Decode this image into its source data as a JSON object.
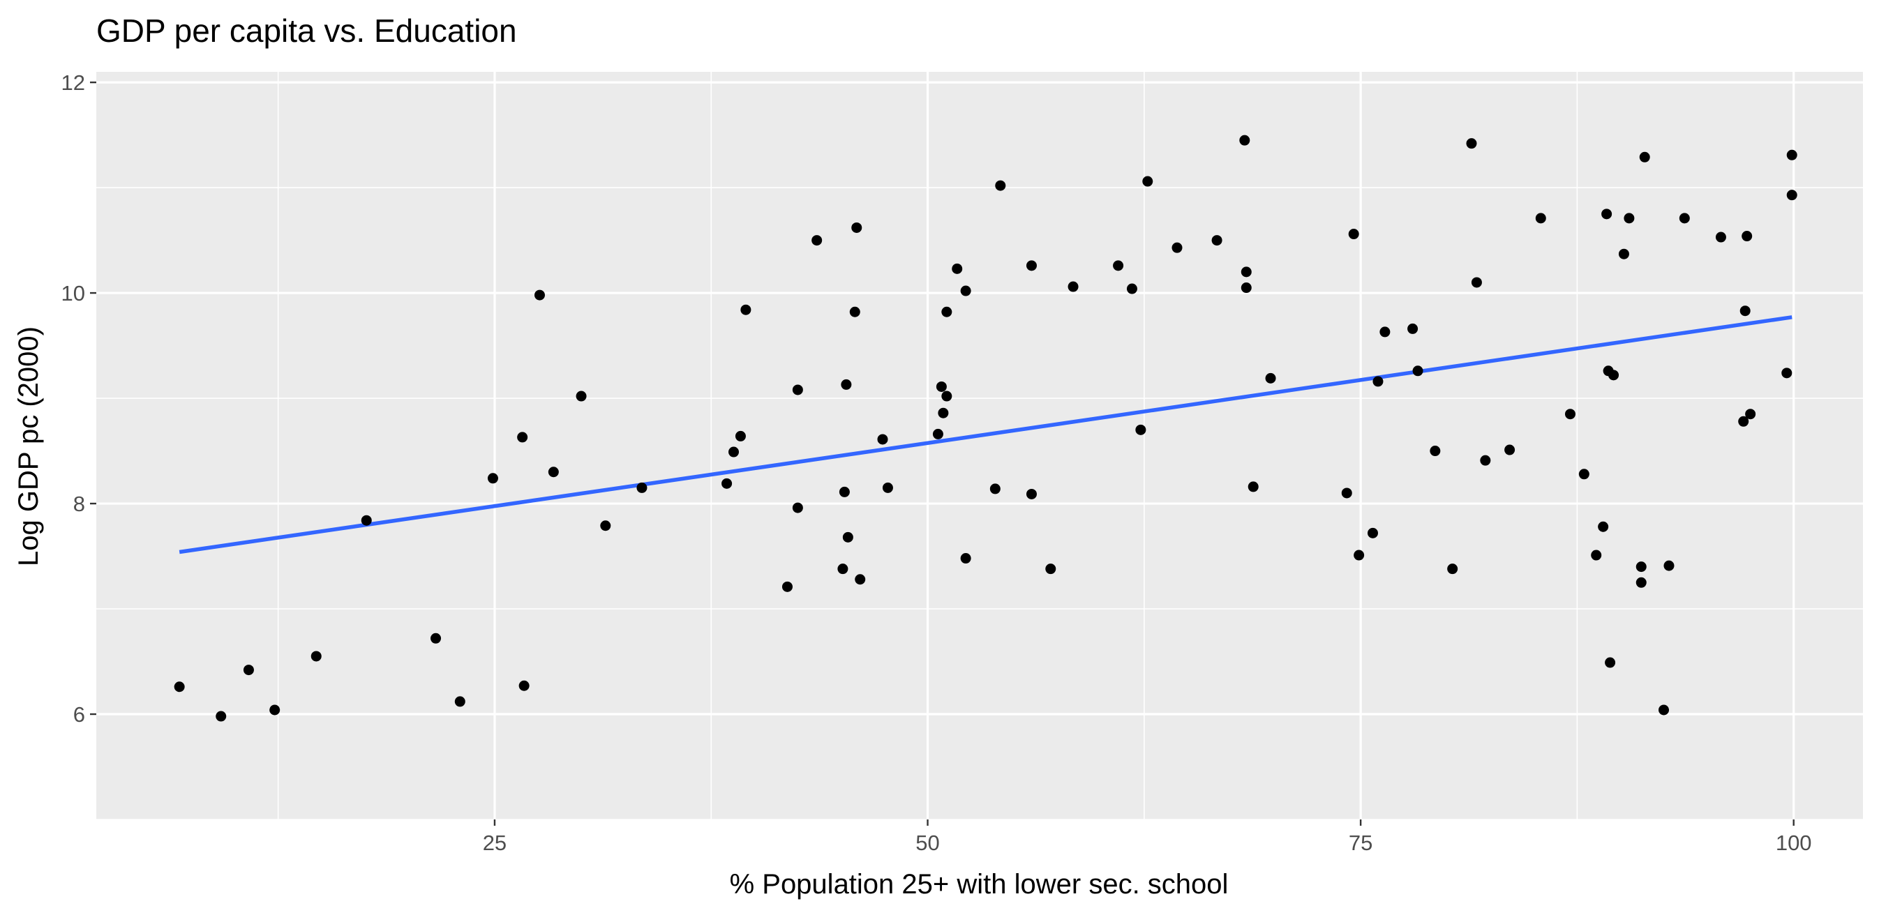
{
  "colors": {
    "panel_background": "#ebebeb",
    "grid_major": "#ffffff",
    "point": "#000000",
    "fit_line": "#3366ff",
    "tick": "#333333"
  },
  "chart_data": {
    "type": "scatter",
    "title": "GDP per capita vs. Education",
    "xlabel": "% Population 25+ with lower sec. school",
    "ylabel": "Log GDP pc (2000)",
    "xlim": [
      2,
      104
    ],
    "ylim": [
      5,
      12.1
    ],
    "xticks": [
      25,
      50,
      75,
      100
    ],
    "xtick_labels": [
      "25",
      "50",
      "75",
      "100"
    ],
    "yticks": [
      6,
      8,
      10,
      12
    ],
    "ytick_labels": [
      "6",
      "8",
      "10",
      "12"
    ],
    "grid": true,
    "legend": "none",
    "points": [
      {
        "x": 6.8,
        "y": 6.26
      },
      {
        "x": 9.2,
        "y": 5.98
      },
      {
        "x": 10.8,
        "y": 6.42
      },
      {
        "x": 12.3,
        "y": 6.04
      },
      {
        "x": 14.7,
        "y": 6.55
      },
      {
        "x": 17.6,
        "y": 7.84
      },
      {
        "x": 21.6,
        "y": 6.72
      },
      {
        "x": 23.0,
        "y": 6.12
      },
      {
        "x": 24.9,
        "y": 8.24
      },
      {
        "x": 26.6,
        "y": 8.63
      },
      {
        "x": 26.7,
        "y": 6.27
      },
      {
        "x": 27.6,
        "y": 9.98
      },
      {
        "x": 28.4,
        "y": 8.3
      },
      {
        "x": 30.0,
        "y": 9.02
      },
      {
        "x": 31.4,
        "y": 7.79
      },
      {
        "x": 33.5,
        "y": 8.15
      },
      {
        "x": 38.4,
        "y": 8.19
      },
      {
        "x": 38.8,
        "y": 8.49
      },
      {
        "x": 39.2,
        "y": 8.64
      },
      {
        "x": 39.5,
        "y": 9.84
      },
      {
        "x": 41.9,
        "y": 7.21
      },
      {
        "x": 42.5,
        "y": 7.96
      },
      {
        "x": 42.5,
        "y": 9.08
      },
      {
        "x": 43.6,
        "y": 10.5
      },
      {
        "x": 45.1,
        "y": 7.38
      },
      {
        "x": 45.2,
        "y": 8.11
      },
      {
        "x": 45.3,
        "y": 9.13
      },
      {
        "x": 45.4,
        "y": 7.68
      },
      {
        "x": 45.8,
        "y": 9.82
      },
      {
        "x": 45.9,
        "y": 10.62
      },
      {
        "x": 46.1,
        "y": 7.28
      },
      {
        "x": 47.4,
        "y": 8.61
      },
      {
        "x": 47.7,
        "y": 8.15
      },
      {
        "x": 50.6,
        "y": 8.66
      },
      {
        "x": 50.8,
        "y": 9.11
      },
      {
        "x": 50.9,
        "y": 8.86
      },
      {
        "x": 51.1,
        "y": 9.02
      },
      {
        "x": 51.1,
        "y": 9.82
      },
      {
        "x": 51.7,
        "y": 10.23
      },
      {
        "x": 52.2,
        "y": 10.02
      },
      {
        "x": 52.2,
        "y": 7.48
      },
      {
        "x": 53.9,
        "y": 8.14
      },
      {
        "x": 54.2,
        "y": 11.02
      },
      {
        "x": 56.0,
        "y": 8.09
      },
      {
        "x": 56.0,
        "y": 10.26
      },
      {
        "x": 57.1,
        "y": 7.38
      },
      {
        "x": 58.4,
        "y": 10.06
      },
      {
        "x": 61.0,
        "y": 10.26
      },
      {
        "x": 61.8,
        "y": 10.04
      },
      {
        "x": 62.3,
        "y": 8.7
      },
      {
        "x": 62.7,
        "y": 11.06
      },
      {
        "x": 64.4,
        "y": 10.43
      },
      {
        "x": 66.7,
        "y": 10.5
      },
      {
        "x": 68.3,
        "y": 11.45
      },
      {
        "x": 68.4,
        "y": 10.2
      },
      {
        "x": 68.4,
        "y": 10.05
      },
      {
        "x": 68.8,
        "y": 8.16
      },
      {
        "x": 69.8,
        "y": 9.19
      },
      {
        "x": 74.2,
        "y": 8.1
      },
      {
        "x": 74.6,
        "y": 10.56
      },
      {
        "x": 74.9,
        "y": 7.51
      },
      {
        "x": 75.7,
        "y": 7.72
      },
      {
        "x": 76.0,
        "y": 9.16
      },
      {
        "x": 76.4,
        "y": 9.63
      },
      {
        "x": 78.0,
        "y": 9.66
      },
      {
        "x": 78.3,
        "y": 9.26
      },
      {
        "x": 79.3,
        "y": 8.5
      },
      {
        "x": 80.3,
        "y": 7.38
      },
      {
        "x": 81.4,
        "y": 11.42
      },
      {
        "x": 81.7,
        "y": 10.1
      },
      {
        "x": 82.2,
        "y": 8.41
      },
      {
        "x": 83.6,
        "y": 8.51
      },
      {
        "x": 85.4,
        "y": 10.71
      },
      {
        "x": 87.1,
        "y": 8.85
      },
      {
        "x": 87.9,
        "y": 8.28
      },
      {
        "x": 88.6,
        "y": 7.51
      },
      {
        "x": 89.0,
        "y": 7.78
      },
      {
        "x": 89.2,
        "y": 10.75
      },
      {
        "x": 89.3,
        "y": 9.26
      },
      {
        "x": 89.4,
        "y": 6.49
      },
      {
        "x": 89.6,
        "y": 9.22
      },
      {
        "x": 90.2,
        "y": 10.37
      },
      {
        "x": 90.5,
        "y": 10.71
      },
      {
        "x": 91.2,
        "y": 7.4
      },
      {
        "x": 91.2,
        "y": 7.25
      },
      {
        "x": 91.4,
        "y": 11.29
      },
      {
        "x": 92.5,
        "y": 6.04
      },
      {
        "x": 92.8,
        "y": 7.41
      },
      {
        "x": 93.7,
        "y": 10.71
      },
      {
        "x": 95.8,
        "y": 10.53
      },
      {
        "x": 97.1,
        "y": 8.78
      },
      {
        "x": 97.2,
        "y": 9.83
      },
      {
        "x": 97.3,
        "y": 10.54
      },
      {
        "x": 97.5,
        "y": 8.85
      },
      {
        "x": 99.6,
        "y": 9.24
      },
      {
        "x": 99.9,
        "y": 11.31
      },
      {
        "x": 99.9,
        "y": 10.93
      }
    ],
    "fit_line": {
      "x": [
        6.8,
        99.9
      ],
      "y": [
        7.54,
        9.77
      ]
    }
  }
}
